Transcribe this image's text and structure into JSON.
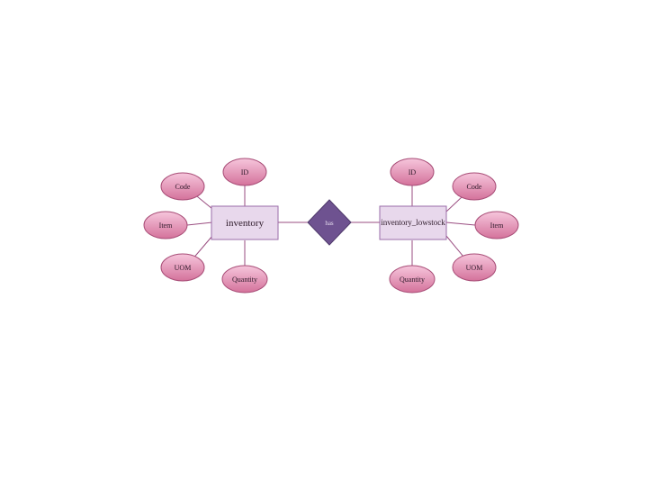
{
  "diagram": {
    "type": "entity-relationship",
    "colors": {
      "attribute_fill_top": "#f3bcd6",
      "attribute_fill_bottom": "#d6749d",
      "attribute_stroke": "#a84d77",
      "entity_fill": "#e8d8ec",
      "entity_stroke": "#9a6ca8",
      "relationship_fill": "#6e5290",
      "relationship_stroke": "#4f3a6b",
      "connector": "#9a4d80"
    },
    "relationship": {
      "label": "has"
    },
    "entities": [
      {
        "name": "inventory",
        "attributes": [
          "ID",
          "Code",
          "Item",
          "UOM",
          "Quantity"
        ]
      },
      {
        "name": "inventory_lowstock",
        "attributes": [
          "ID",
          "Code",
          "Item",
          "UOM",
          "Quantity"
        ]
      }
    ]
  }
}
